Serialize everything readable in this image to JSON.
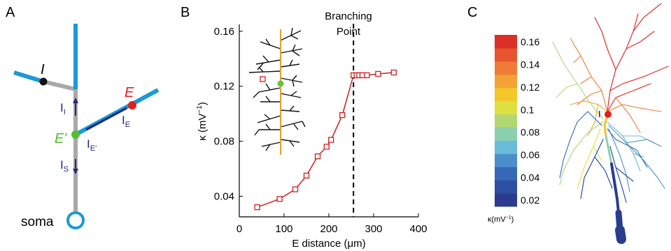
{
  "panels": {
    "a": {
      "label": "A",
      "labels": {
        "I": "I",
        "E": "E",
        "E_prime": "E'",
        "soma": "soma"
      },
      "currents": {
        "I_I": "I",
        "I_I_sub": "I",
        "I_E": "I",
        "I_E_sub": "E",
        "I_Eprime": "I",
        "I_Eprime_sub": "E'",
        "I_S": "I",
        "I_S_sub": "S"
      },
      "colors": {
        "dendrite": "#1a9ad6",
        "trunk": "#a9a9a9",
        "excitatory": "#e02020",
        "inhibitory": "#111111",
        "prime": "#55bb33",
        "current": "#1f2a80"
      }
    },
    "b": {
      "label": "B",
      "branch_label_line1": "Branching",
      "branch_label_line2": "Point",
      "colors": {
        "series": "#cc1f1f",
        "trunk": "#e8a030",
        "branches": "#111111",
        "site": "#66c23a"
      }
    },
    "c": {
      "label": "C",
      "site_label": "I",
      "colorbar_ticks": [
        "0.16",
        "0.14",
        "0.12",
        "0.1",
        "0.08",
        "0.06",
        "0.04",
        "0.02"
      ],
      "colorbar_label": "κ(mV",
      "colorbar_label_sup": "−1",
      "colorbar_label_end": ")",
      "colorbar_colors": [
        "#2b3c8e",
        "#2c4fa3",
        "#3569b5",
        "#4a8fcc",
        "#69bcd9",
        "#8ccfae",
        "#b2d672",
        "#dfe03f",
        "#f3c62a",
        "#f4a236",
        "#ef7b36",
        "#e6552f",
        "#dc3027"
      ]
    }
  },
  "chart_data": {
    "type": "line",
    "x": [
      40,
      90,
      125,
      150,
      175,
      195,
      205,
      230,
      255,
      262,
      268,
      275,
      285,
      310,
      345
    ],
    "y": [
      0.032,
      0.038,
      0.045,
      0.055,
      0.069,
      0.076,
      0.081,
      0.099,
      0.128,
      0.128,
      0.128,
      0.128,
      0.128,
      0.129,
      0.13
    ],
    "xlim": [
      0,
      400
    ],
    "ylim": [
      0.025,
      0.165
    ],
    "xticks": [
      "0",
      "100",
      "200",
      "300",
      "400"
    ],
    "xtick_values": [
      0,
      100,
      200,
      300,
      400
    ],
    "yticks": [
      "0.04",
      "0.08",
      "0.12",
      "0.16"
    ],
    "ytick_values": [
      0.04,
      0.08,
      0.12,
      0.16
    ],
    "xlabel": "E distance (μm)",
    "ylabel": "κ (mV",
    "ylabel_sup": "−1",
    "ylabel_end": ")",
    "branching_point_x": 255,
    "marker": "square"
  }
}
